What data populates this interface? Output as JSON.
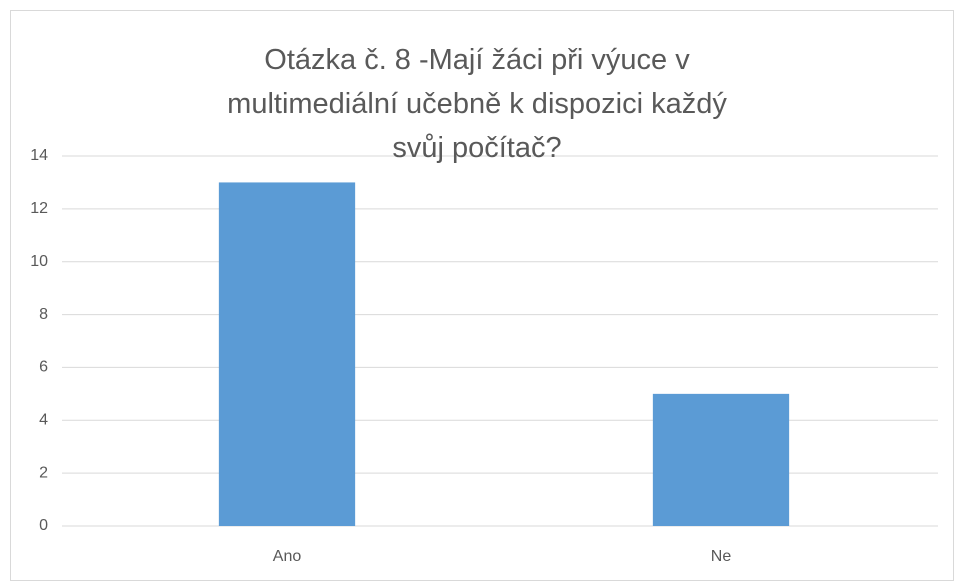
{
  "chart_data": {
    "type": "bar",
    "title": "Otázka č. 8 -Mají žáci při výuce v multimediální učebně k dispozici každý svůj počítač?",
    "categories": [
      "Ano",
      "Ne"
    ],
    "values": [
      13,
      5
    ],
    "color": "#5b9bd5",
    "ylim": [
      0,
      14
    ],
    "yticks": [
      0,
      2,
      4,
      6,
      8,
      10,
      12,
      14
    ],
    "grid": true
  }
}
